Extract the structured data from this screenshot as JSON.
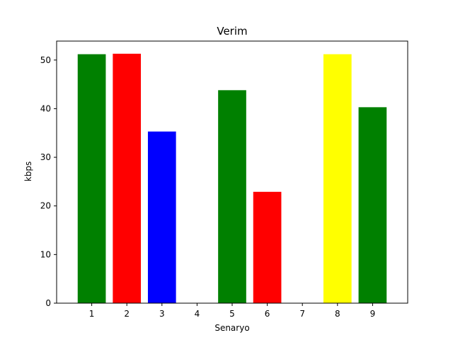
{
  "chart_data": {
    "type": "bar",
    "title": "Verim",
    "xlabel": "Senaryo",
    "ylabel": "kbps",
    "categories": [
      "1",
      "2",
      "3",
      "4",
      "5",
      "6",
      "7",
      "8",
      "9"
    ],
    "values": [
      51.2,
      51.3,
      35.3,
      0,
      43.8,
      22.9,
      0,
      51.2,
      40.3
    ],
    "bar_colors": [
      "#008000",
      "#ff0000",
      "#0000ff",
      "#ffffff",
      "#008000",
      "#ff0000",
      "#ffffff",
      "#ffff00",
      "#008000"
    ],
    "ylim": [
      0,
      53.9
    ],
    "yticks": [
      0,
      10,
      20,
      30,
      40,
      50
    ],
    "xlim": [
      0.0,
      10.0
    ],
    "grid": false,
    "legend": false
  }
}
